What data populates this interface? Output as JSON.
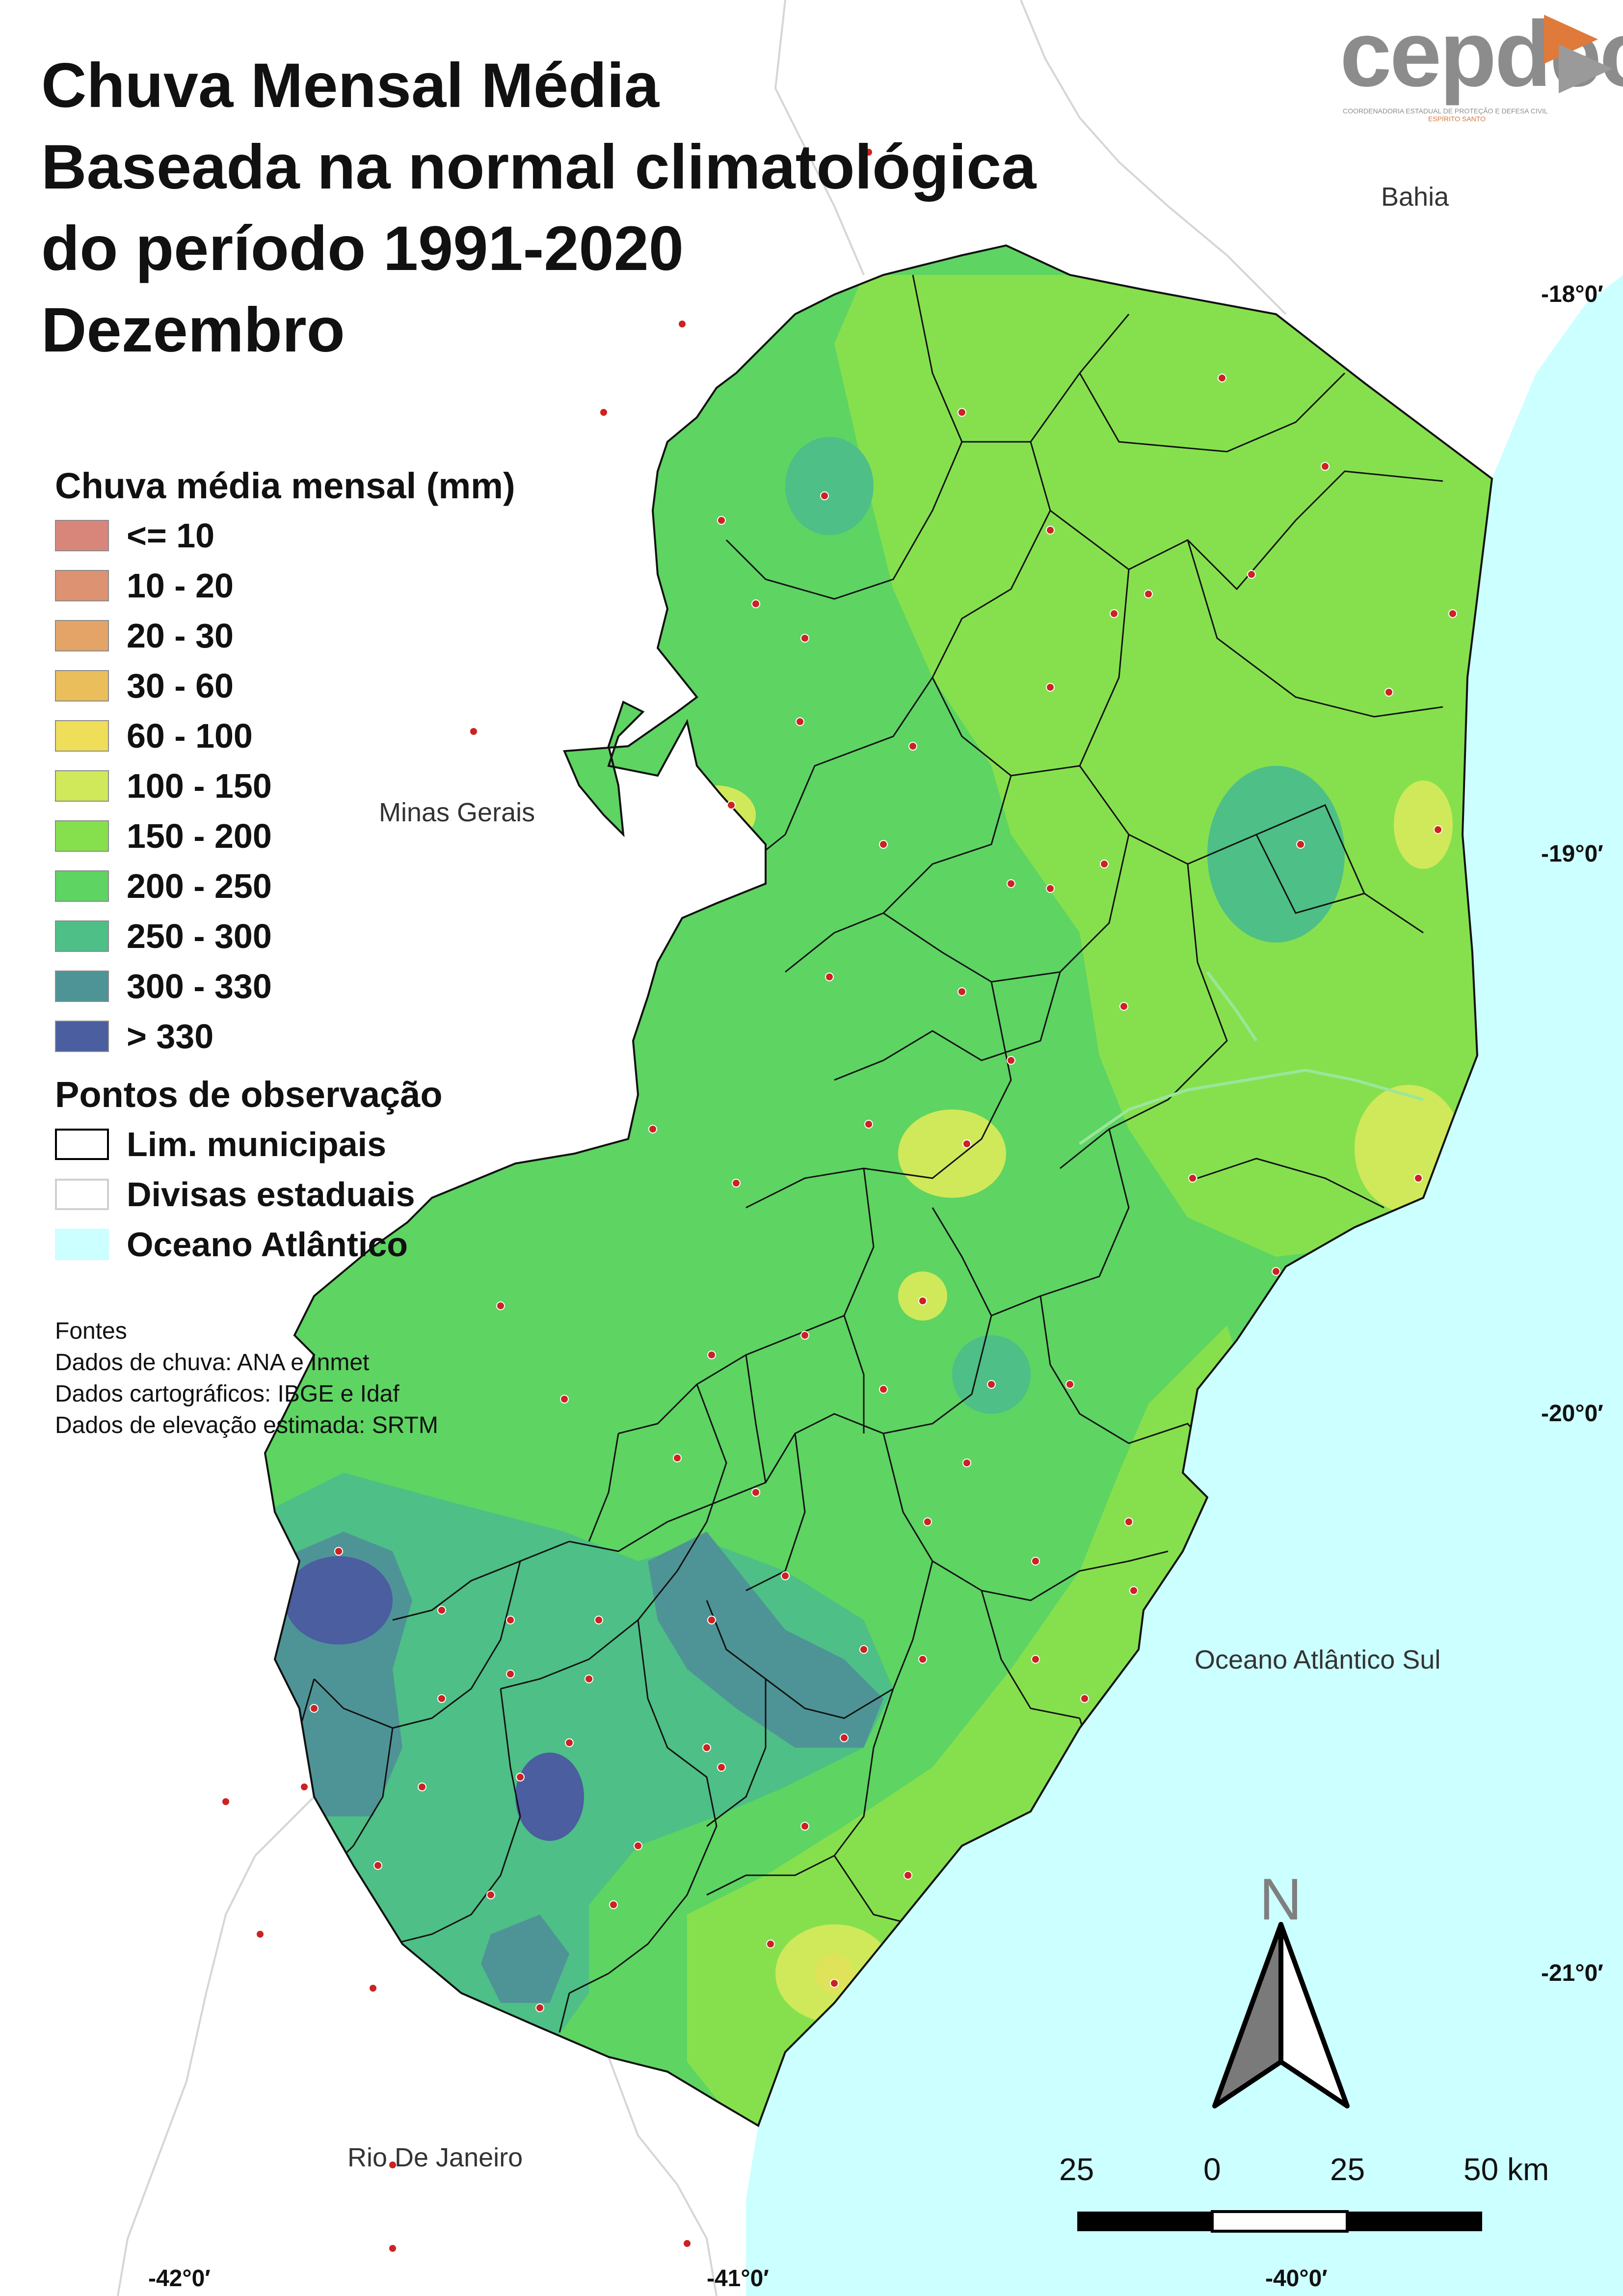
{
  "title": {
    "line1": "Chuva Mensal Média",
    "line2": "Baseada na normal climatológica",
    "line3": "do período 1991-2020",
    "line4": "Dezembro"
  },
  "logo": {
    "name": "cepdec",
    "subtitle": "COORDENADORIA ESTADUAL DE PROTEÇÃO E DEFESA CIVIL",
    "state": "ESPÍRITO SANTO"
  },
  "legend": {
    "heading": "Chuva média mensal (mm)",
    "classes": [
      {
        "label": "<= 10",
        "color": "#d9867a"
      },
      {
        "label": "10 - 20",
        "color": "#dd9272"
      },
      {
        "label": "20 - 30",
        "color": "#e4a468"
      },
      {
        "label": "30 - 60",
        "color": "#ebbe5c"
      },
      {
        "label": "60 - 100",
        "color": "#efde5a"
      },
      {
        "label": "100 - 150",
        "color": "#cfe95a"
      },
      {
        "label": "150 - 200",
        "color": "#86e04e"
      },
      {
        "label": "200 - 250",
        "color": "#5ed462"
      },
      {
        "label": "250 - 300",
        "color": "#4ebf86"
      },
      {
        "label": "300 - 330",
        "color": "#4e9496"
      },
      {
        "label": "> 330",
        "color": "#4a5ea0"
      }
    ],
    "points_heading": "Pontos de observação",
    "layers": [
      {
        "label": "Lim. municipais",
        "fill": "#ffffff",
        "border": "#000000"
      },
      {
        "label": "Divisas estaduais",
        "fill": "#ffffff",
        "border": "#d0d0d0"
      },
      {
        "label": "Oceano Atlântico",
        "fill": "#ccffff",
        "border": "#ccffff"
      }
    ]
  },
  "sources": {
    "heading": "Fontes",
    "rain": "Dados de chuva: ANA e Inmet",
    "carto": "Dados cartográficos: IBGE e Idaf",
    "elevation": "Dados de elevação estimada: SRTM"
  },
  "places": {
    "bahia": "Bahia",
    "minas": "Minas Gerais",
    "ocean": "Oceano Atlântico Sul",
    "rio": "Rio De Janeiro"
  },
  "coords": {
    "lat18": "-18°0′",
    "lat19": "-19°0′",
    "lat20": "-20°0′",
    "lat21": "-21°0′",
    "lon42": "-42°0′",
    "lon41": "-41°0′",
    "lon40": "-40°0′"
  },
  "north_arrow": {
    "letter": "N"
  },
  "scale_bar": {
    "labels": [
      "25",
      "0",
      "25",
      "50 km"
    ]
  }
}
